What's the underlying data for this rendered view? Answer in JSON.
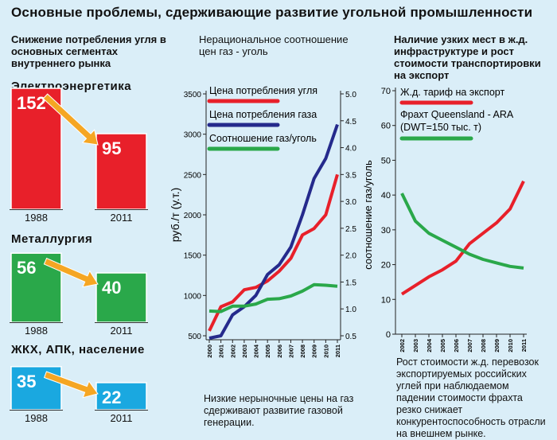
{
  "page": {
    "title": "Основные проблемы, сдерживающие развитие угольной промышленности"
  },
  "colors": {
    "background": "#daeef8",
    "red": "#e8202a",
    "green": "#2aa84a",
    "blue": "#1aa8e0",
    "navy": "#252a8c",
    "arrow": "#f5a623"
  },
  "chart_data": [
    {
      "type": "bar",
      "title": "Снижение потребления угля в основных сегментах внутреннего рынка",
      "groups": [
        {
          "label": "Электроэнергетика",
          "categories": [
            "1988",
            "2011"
          ],
          "values": [
            152,
            95
          ],
          "color": "#e8202a"
        },
        {
          "label": "Металлургия",
          "categories": [
            "1988",
            "2011"
          ],
          "values": [
            56,
            40
          ],
          "color": "#2aa84a"
        },
        {
          "label": "ЖКХ, АПК, население",
          "categories": [
            "1988",
            "2011"
          ],
          "values": [
            35,
            22
          ],
          "color": "#1aa8e0"
        }
      ]
    },
    {
      "type": "line",
      "title": "Нерациональное соотношение цен газ - уголь",
      "x": [
        "2000",
        "2001",
        "2002",
        "2003",
        "2004",
        "2005",
        "2006",
        "2007",
        "2008",
        "2009",
        "2010",
        "2011"
      ],
      "ylabel": "руб./т (у.т.)",
      "ylim": [
        500,
        3500
      ],
      "yticks": [
        500,
        1000,
        1500,
        2000,
        2500,
        3000,
        3500
      ],
      "y2label": "соотношение газ/уголь",
      "y2lim": [
        0.5,
        5.0
      ],
      "y2ticks": [
        "0.5",
        "1.0",
        "1.5",
        "2.0",
        "2.5",
        "3.0",
        "3.5",
        "4.0",
        "4.5",
        "5.0"
      ],
      "series": [
        {
          "name": "Цена потребления угля",
          "axis": "left",
          "color": "#e8202a",
          "values": [
            560,
            860,
            920,
            1070,
            1100,
            1180,
            1300,
            1460,
            1750,
            1830,
            2000,
            2500
          ]
        },
        {
          "name": "Цена потребления газа",
          "axis": "left",
          "color": "#252a8c",
          "values": [
            470,
            500,
            760,
            860,
            1000,
            1260,
            1380,
            1600,
            2000,
            2450,
            2700,
            3120
          ]
        },
        {
          "name": "Соотношение газ/уголь",
          "axis": "right",
          "color": "#2aa84a",
          "values": [
            0.96,
            0.95,
            1.05,
            1.05,
            1.09,
            1.18,
            1.19,
            1.24,
            1.33,
            1.45,
            1.44,
            1.42
          ]
        }
      ],
      "note": "Низкие нерыночные цены на газ сдерживают развитие газовой генерации."
    },
    {
      "type": "line",
      "title": "Наличие узких мест в ж.д. инфраструктуре и рост стоимости транспортировки на экспорт",
      "x": [
        "2002",
        "2003",
        "2004",
        "2005",
        "2006",
        "2007",
        "2008",
        "2009",
        "2010",
        "2011"
      ],
      "ylim": [
        0,
        70
      ],
      "yticks": [
        0,
        10,
        20,
        30,
        40,
        50,
        60,
        70
      ],
      "series": [
        {
          "name": "Ж.д. тариф на экспорт",
          "color": "#e8202a",
          "values": [
            11.5,
            14,
            16.5,
            18.5,
            21,
            26,
            29,
            32,
            36,
            44
          ]
        },
        {
          "name": "Фрахт Queensland - ARA (DWT=150 тыс. т)",
          "color": "#2aa84a",
          "values": [
            40.5,
            32.5,
            29,
            27,
            25,
            23,
            21.5,
            20.5,
            19.5,
            19
          ]
        }
      ],
      "note": "Рост стоимости ж.д. перевозок экспортируемых российских углей при наблюдаемом падении стоимости фрахта резко снижает конкурентоспособность отрасли на внешнем рынке."
    }
  ]
}
